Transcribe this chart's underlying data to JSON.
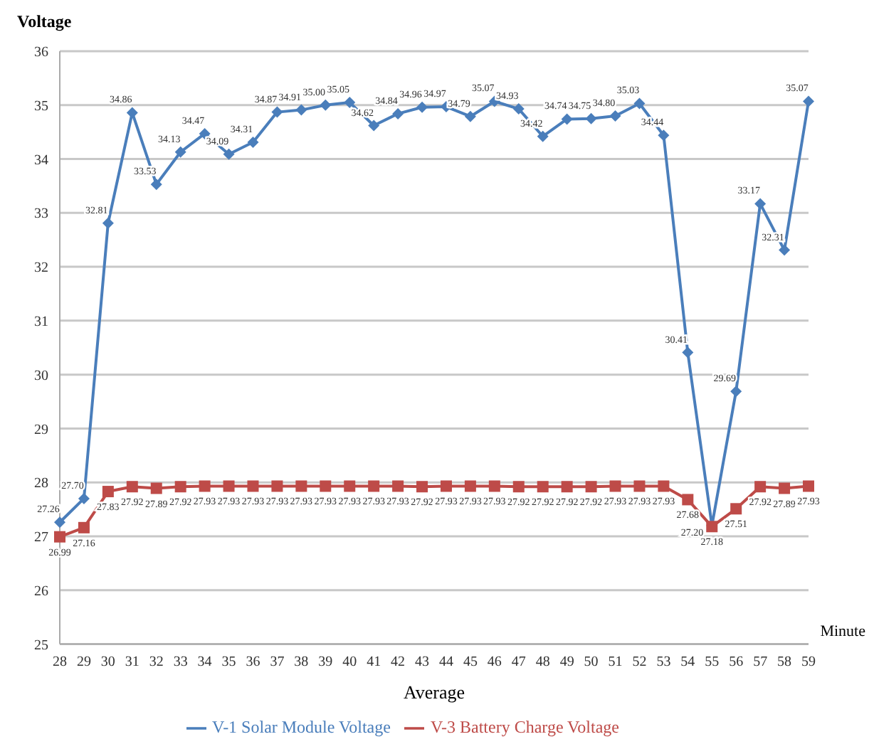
{
  "chart_data": {
    "type": "line",
    "ylabel": "Voltage",
    "xlabel": "Average",
    "annotations": [
      "Minute"
    ],
    "categories": [
      "28",
      "29",
      "30",
      "31",
      "32",
      "33",
      "34",
      "35",
      "36",
      "37",
      "38",
      "39",
      "40",
      "41",
      "42",
      "43",
      "44",
      "45",
      "46",
      "47",
      "48",
      "49",
      "50",
      "51",
      "52",
      "53",
      "54",
      "55",
      "56",
      "57",
      "58",
      "59"
    ],
    "series": [
      {
        "name": "V-1  Solar Module Voltage",
        "color": "#4a7ebb",
        "marker": "diamond",
        "values": [
          27.26,
          27.7,
          32.81,
          34.86,
          33.53,
          34.13,
          34.47,
          34.09,
          34.31,
          34.87,
          34.91,
          35.0,
          35.05,
          34.62,
          34.84,
          34.96,
          34.97,
          34.79,
          35.07,
          34.93,
          34.42,
          34.74,
          34.75,
          34.8,
          35.03,
          34.44,
          30.41,
          27.2,
          29.69,
          33.17,
          32.31,
          35.07
        ],
        "value_labels": [
          "27.26",
          "27.70",
          "32.81",
          "34.86",
          "33.53",
          "34.13",
          "34.47",
          "34.09",
          "34.31",
          "34.87",
          "34.91",
          "35.00",
          "35.05",
          "34.62",
          "34.84",
          "34.96",
          "34.97",
          "34.79",
          "35.07",
          "34.93",
          "34.42",
          "34.74",
          "34.75",
          "34.80",
          "35.03",
          "34.44",
          "30.41",
          "27.20",
          "29.69",
          "33.17",
          "32.31",
          "35.07"
        ]
      },
      {
        "name": "V-3  Battery Charge Voltage",
        "color": "#be4b48",
        "marker": "square",
        "values": [
          26.99,
          27.16,
          27.83,
          27.92,
          27.89,
          27.92,
          27.93,
          27.93,
          27.93,
          27.93,
          27.93,
          27.93,
          27.93,
          27.93,
          27.93,
          27.92,
          27.93,
          27.93,
          27.93,
          27.92,
          27.92,
          27.92,
          27.92,
          27.93,
          27.93,
          27.93,
          27.68,
          27.18,
          27.51,
          27.92,
          27.89,
          27.93
        ],
        "value_labels": [
          "26.99",
          "27.16",
          "27.83",
          "27.92",
          "27.89",
          "27.92",
          "27.93",
          "27.93",
          "27.93",
          "27.93",
          "27.93",
          "27.93",
          "27.93",
          "27.93",
          "27.93",
          "27.92",
          "27.93",
          "27.93",
          "27.93",
          "27.92",
          "27.92",
          "27.92",
          "27.92",
          "27.93",
          "27.93",
          "27.93",
          "27.68",
          "27.18",
          "27.51",
          "27.92",
          "27.89",
          "27.93"
        ]
      }
    ],
    "ylim": [
      25,
      36
    ],
    "yticks": [
      25,
      26,
      27,
      28,
      29,
      30,
      31,
      32,
      33,
      34,
      35,
      36
    ],
    "grid": "y",
    "legend": "bottom",
    "line_style": "solid"
  }
}
